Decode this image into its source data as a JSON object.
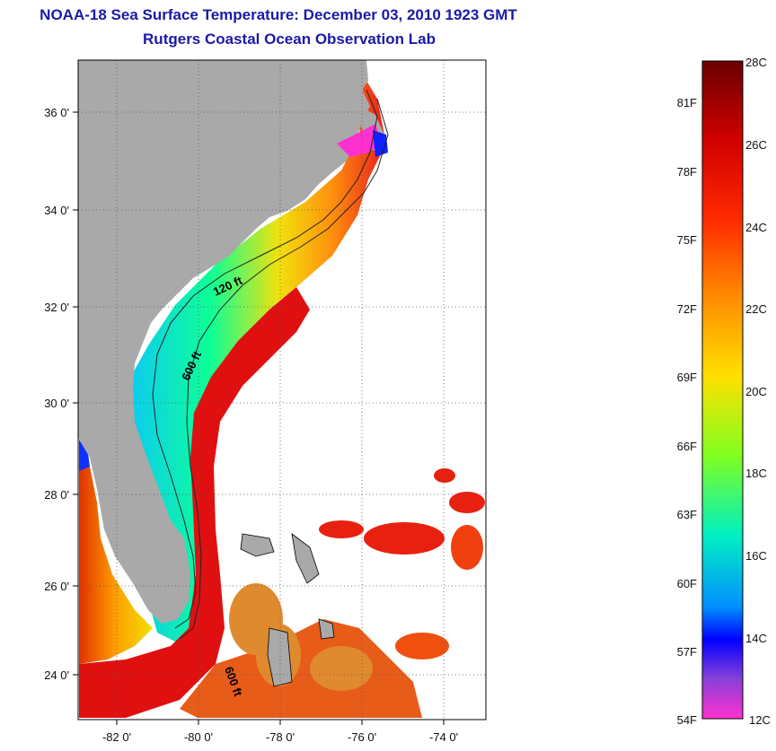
{
  "header": {
    "title": "NOAA-18 Sea Surface Temperature:  December 03, 2010 1923 GMT",
    "subtitle": "Rutgers Coastal Ocean Observation Lab"
  },
  "map": {
    "lat_labels": [
      "36 0'",
      "34 0'",
      "32 0'",
      "30 0'",
      "28 0'",
      "26 0'",
      "24 0'"
    ],
    "lon_labels": [
      "-82 0'",
      "-80 0'",
      "-78 0'",
      "-76 0'",
      "-74 0'"
    ],
    "contours": [
      "120 ft",
      "600 ft",
      "600 ft"
    ],
    "colors": {
      "land": "#a9a9a9",
      "ocean_nodata": "#ffffff",
      "graticule": "#555555"
    }
  },
  "colorbar": {
    "celsius": [
      "28C",
      "26C",
      "24C",
      "22C",
      "20C",
      "18C",
      "16C",
      "14C",
      "12C"
    ],
    "fahrenheit": [
      "81F",
      "78F",
      "75F",
      "72F",
      "69F",
      "66F",
      "63F",
      "60F",
      "57F",
      "54F"
    ],
    "stops": [
      "#7a0000",
      "#e00000",
      "#ff6a00",
      "#ffd400",
      "#a0ff00",
      "#00e6a0",
      "#00b8ff",
      "#0000ff",
      "#7a3cd0",
      "#ff33cc"
    ]
  }
}
